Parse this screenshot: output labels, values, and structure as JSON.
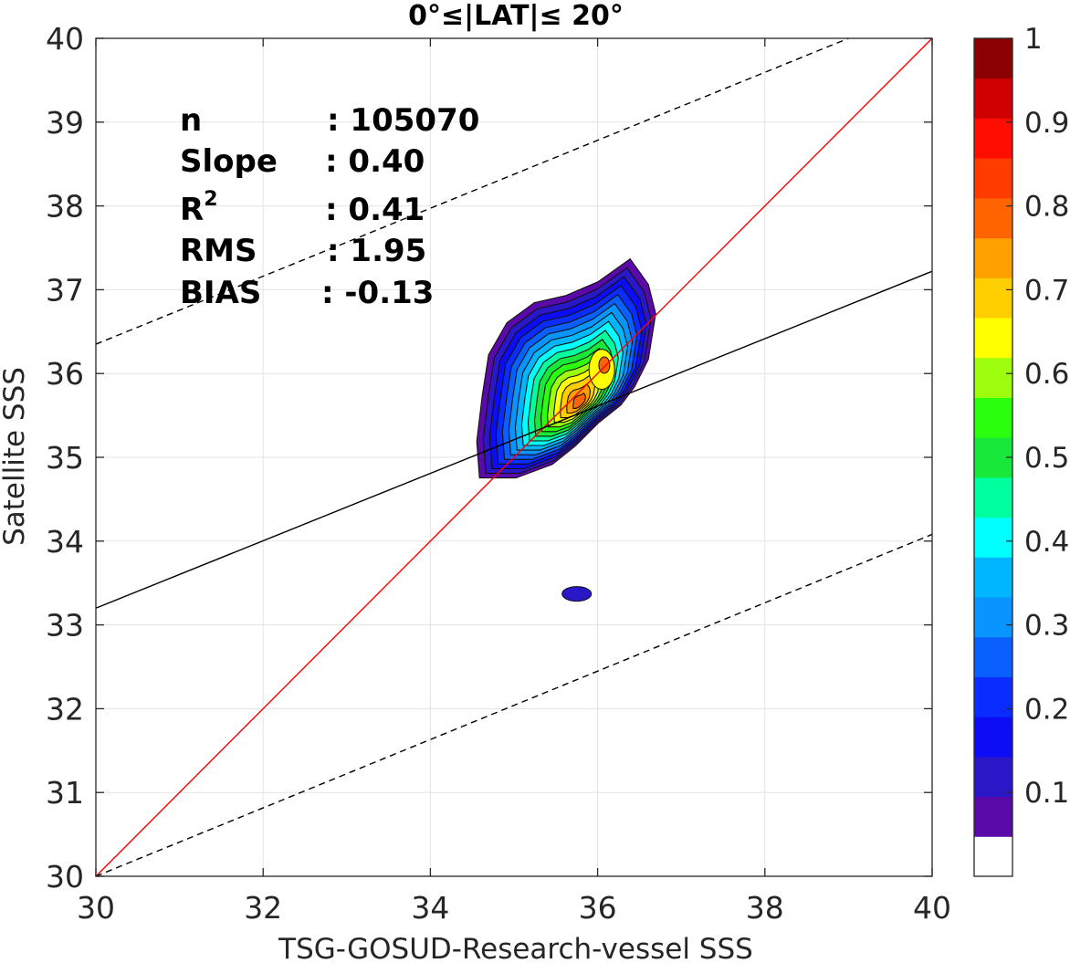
{
  "chart_data": {
    "type": "contour",
    "title": "0°≤|LAT|≤ 20°",
    "xlabel": "TSG-GOSUD-Research-vessel SSS",
    "ylabel": "Satellite SSS",
    "xlim": [
      30,
      40
    ],
    "ylim": [
      30,
      40
    ],
    "x_ticks": [
      "30",
      "32",
      "34",
      "36",
      "38",
      "40"
    ],
    "y_ticks": [
      "30",
      "31",
      "32",
      "33",
      "34",
      "35",
      "36",
      "37",
      "38",
      "39",
      "40"
    ],
    "grid": true,
    "stats": [
      {
        "label": "n",
        "value": ": 105070"
      },
      {
        "label": "Slope",
        "value": ": 0.40"
      },
      {
        "label": "R",
        "sup": "2",
        "value": ": 0.41"
      },
      {
        "label": "RMS",
        "value": ": 1.95"
      },
      {
        "label": "BIAS",
        "value": ": -0.13"
      }
    ],
    "lines": [
      {
        "role": "one-to-one",
        "color": "#ff0000",
        "dash": "solid",
        "points": [
          [
            30,
            30
          ],
          [
            40,
            40
          ]
        ]
      },
      {
        "role": "regression",
        "color": "#000000",
        "dash": "solid",
        "points": [
          [
            30,
            33.2
          ],
          [
            40,
            37.22
          ]
        ]
      },
      {
        "role": "upper-bound",
        "color": "#000000",
        "dash": "dashed",
        "points": [
          [
            30,
            36.35
          ],
          [
            39.0,
            40.0
          ]
        ]
      },
      {
        "role": "lower-bound",
        "color": "#000000",
        "dash": "dashed",
        "points": [
          [
            30,
            30.0
          ],
          [
            40,
            34.08
          ]
        ]
      }
    ],
    "density_peak": {
      "x": 35.45,
      "y": 35.8
    },
    "contour_levels": [
      0.05,
      0.1,
      0.15,
      0.2,
      0.25,
      0.3,
      0.35,
      0.4,
      0.45,
      0.5,
      0.55,
      0.6,
      0.65,
      0.7,
      0.75,
      0.8,
      0.85,
      0.9,
      0.95,
      1.0
    ],
    "colorbar": {
      "ticks": [
        "0.1",
        "0.2",
        "0.3",
        "0.4",
        "0.5",
        "0.6",
        "0.7",
        "0.8",
        "0.9",
        "1"
      ],
      "tick_values": [
        0.1,
        0.2,
        0.3,
        0.4,
        0.5,
        0.6,
        0.7,
        0.8,
        0.9,
        1.0
      ],
      "colors": [
        "#ffffff",
        "#5a0aa8",
        "#2a17c8",
        "#0d0df5",
        "#0a2cff",
        "#0a60ff",
        "#0a94ff",
        "#00b6ff",
        "#00ffff",
        "#00ff9e",
        "#17e83a",
        "#2aff0e",
        "#9dff0e",
        "#ffff00",
        "#ffcf00",
        "#ff9f00",
        "#ff6400",
        "#ff3b00",
        "#ff0d00",
        "#d10000",
        "#8b0000"
      ]
    }
  }
}
